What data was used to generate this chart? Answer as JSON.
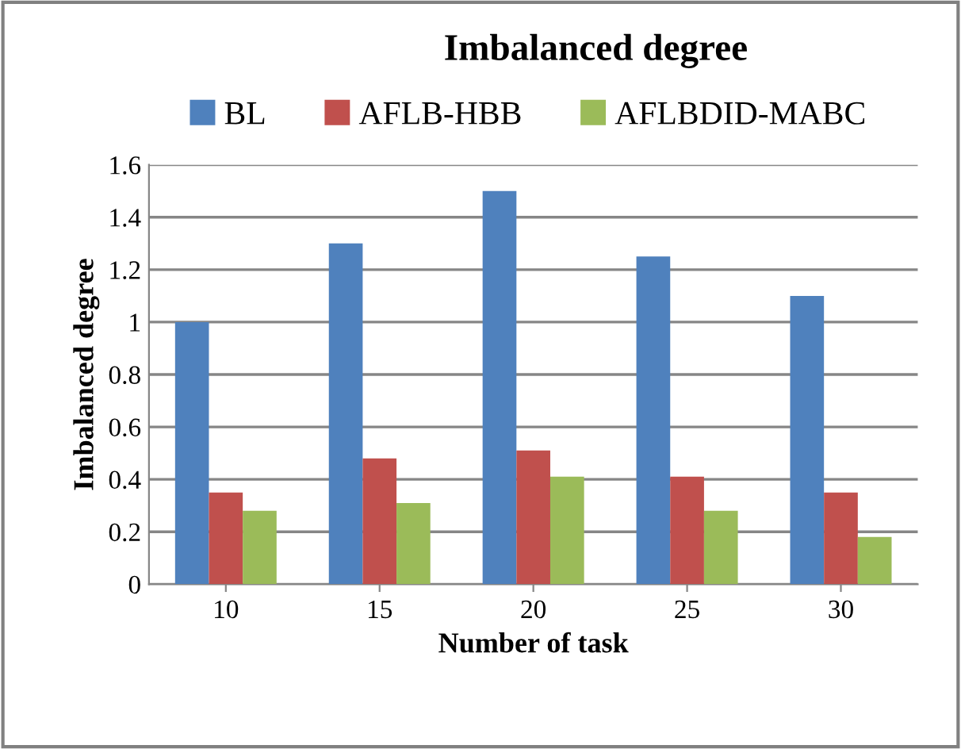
{
  "chart_data": {
    "type": "bar",
    "title": "Imbalanced degree",
    "xlabel": "Number of task",
    "ylabel": "Imbalanced degree",
    "categories": [
      "10",
      "15",
      "20",
      "25",
      "30"
    ],
    "series": [
      {
        "name": "BL",
        "color": "#4f81bd",
        "values": [
          1.0,
          1.3,
          1.5,
          1.25,
          1.1
        ]
      },
      {
        "name": "AFLB-HBB",
        "color": "#c0504d",
        "values": [
          0.35,
          0.48,
          0.51,
          0.41,
          0.35
        ]
      },
      {
        "name": "AFLBDID-MABC",
        "color": "#9bbb59",
        "values": [
          0.28,
          0.31,
          0.41,
          0.28,
          0.18
        ]
      }
    ],
    "ylim": [
      0,
      1.6
    ],
    "yticks": [
      0,
      0.2,
      0.4,
      0.6,
      0.8,
      1,
      1.2,
      1.4,
      1.6
    ],
    "grid": "y",
    "legend": "top"
  }
}
